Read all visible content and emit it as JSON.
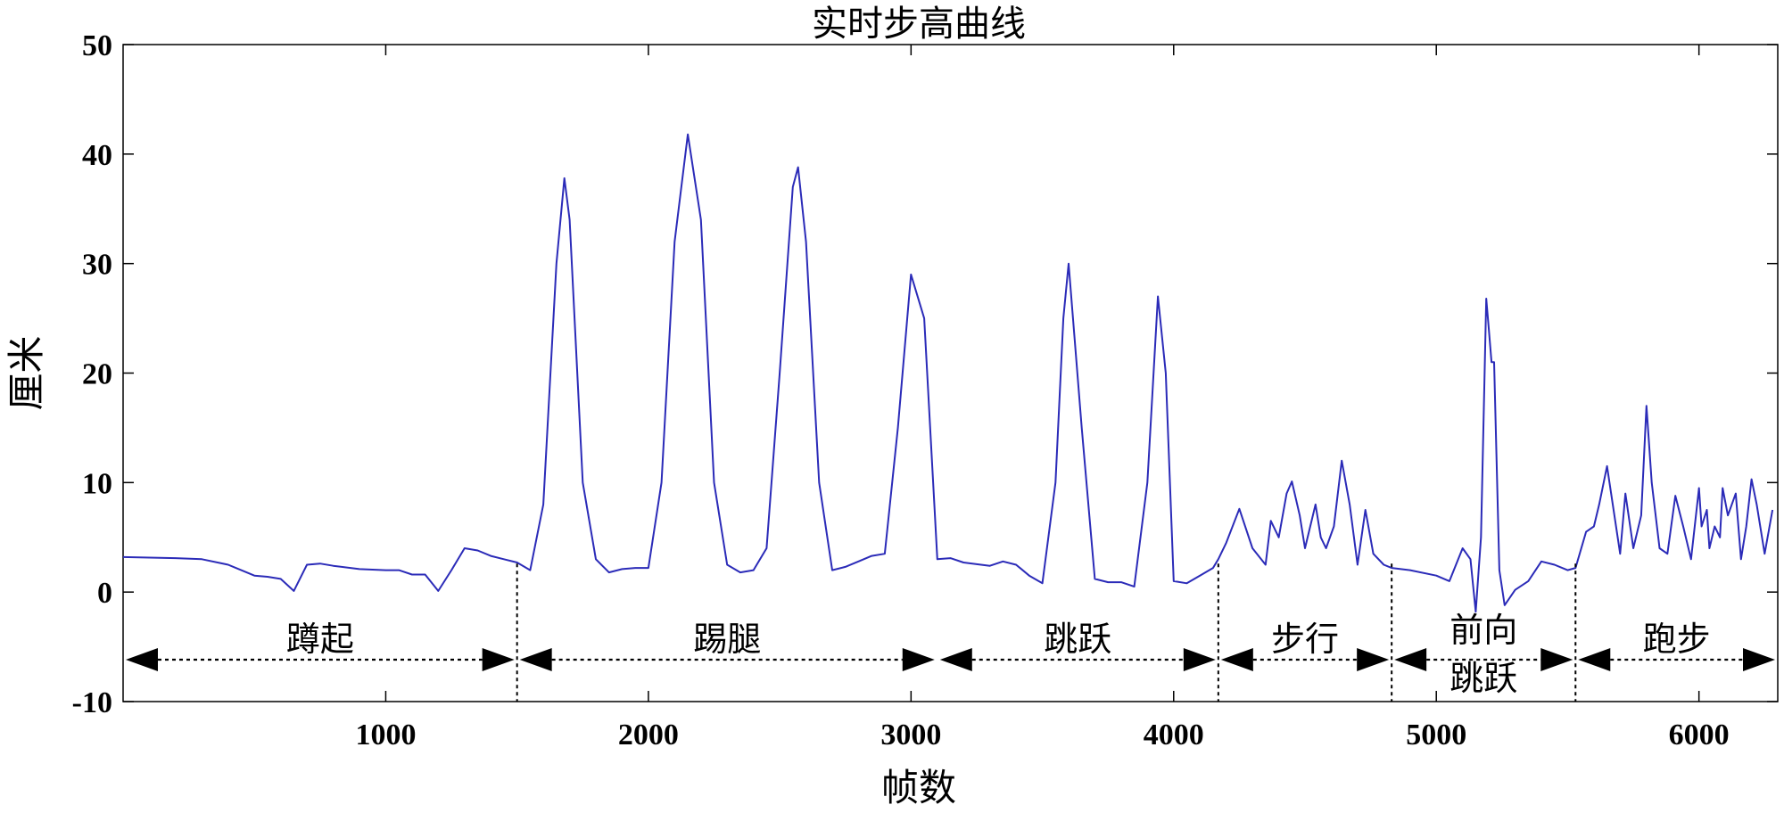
{
  "chart_data": {
    "type": "line",
    "title": "实时步高曲线",
    "xlabel": "帧数",
    "ylabel": "厘米",
    "xlim": [
      0,
      6300
    ],
    "ylim": [
      -10,
      50
    ],
    "xticks": [
      1000,
      2000,
      3000,
      4000,
      5000,
      6000
    ],
    "yticks": [
      -10,
      0,
      10,
      20,
      30,
      40,
      50
    ],
    "grid": false,
    "line_color": "#2b2bb8",
    "series": [
      {
        "x": [
          0,
          200,
          300,
          400,
          500,
          550,
          600,
          650,
          700,
          750,
          800,
          900,
          1000,
          1050,
          1100,
          1150,
          1200,
          1250,
          1300,
          1350,
          1400,
          1450,
          1500,
          1550,
          1600,
          1650,
          1680,
          1700,
          1750,
          1800,
          1850,
          1900,
          1950,
          2000,
          2050,
          2100,
          2150,
          2200,
          2250,
          2300,
          2350,
          2400,
          2450,
          2500,
          2550,
          2570,
          2600,
          2650,
          2700,
          2750,
          2800,
          2850,
          2900,
          2950,
          3000,
          3050,
          3100,
          3150,
          3200,
          3300,
          3350,
          3400,
          3450,
          3500,
          3550,
          3580,
          3600,
          3650,
          3700,
          3750,
          3800,
          3850,
          3900,
          3940,
          3970,
          4000,
          4050,
          4100,
          4150,
          4170,
          4200,
          4250,
          4300,
          4350,
          4370,
          4400,
          4430,
          4450,
          4480,
          4500,
          4540,
          4560,
          4580,
          4610,
          4640,
          4670,
          4700,
          4730,
          4760,
          4800,
          4830,
          4900,
          5000,
          5050,
          5100,
          5130,
          5150,
          5170,
          5190,
          5200,
          5210,
          5220,
          5240,
          5260,
          5280,
          5300,
          5350,
          5400,
          5450,
          5500,
          5530,
          5570,
          5600,
          5620,
          5650,
          5700,
          5720,
          5750,
          5780,
          5800,
          5820,
          5850,
          5880,
          5910,
          5940,
          5970,
          6000,
          6010,
          6030,
          6040,
          6060,
          6080,
          6090,
          6110,
          6140,
          6160,
          6180,
          6200,
          6220,
          6250,
          6280
        ],
        "y": [
          3.2,
          3.1,
          3.0,
          2.5,
          1.5,
          1.4,
          1.2,
          0.1,
          2.5,
          2.6,
          2.4,
          2.1,
          2.0,
          2.0,
          1.6,
          1.6,
          0.1,
          2.0,
          4.0,
          3.8,
          3.3,
          3.0,
          2.7,
          2.0,
          8.0,
          30.0,
          37.8,
          34.0,
          10.0,
          3.0,
          1.8,
          2.1,
          2.2,
          2.2,
          10.0,
          32.0,
          41.8,
          34.0,
          10.0,
          2.5,
          1.8,
          2.0,
          4.0,
          20.0,
          37.0,
          38.8,
          32.0,
          10.0,
          2.0,
          2.3,
          2.8,
          3.3,
          3.5,
          15.0,
          29.0,
          25.0,
          3.0,
          3.1,
          2.7,
          2.4,
          2.8,
          2.5,
          1.5,
          0.8,
          10.0,
          25.0,
          30.0,
          15.0,
          1.2,
          0.9,
          0.9,
          0.5,
          10.0,
          27.0,
          20.0,
          1.0,
          0.8,
          1.5,
          2.2,
          3.0,
          4.5,
          7.6,
          4.0,
          2.5,
          6.5,
          5.0,
          9.0,
          10.1,
          7.0,
          4.0,
          8.0,
          5.0,
          4.0,
          6.0,
          12.0,
          8.0,
          2.5,
          7.5,
          3.5,
          2.5,
          2.2,
          2.0,
          1.5,
          1.0,
          4.0,
          3.0,
          -1.8,
          5.0,
          26.8,
          24.0,
          21.0,
          21.0,
          2.0,
          -1.2,
          -0.5,
          0.2,
          1.0,
          2.8,
          2.5,
          2.0,
          2.2,
          5.5,
          6.0,
          8.0,
          11.5,
          3.5,
          9.0,
          4.0,
          7.0,
          17.0,
          10.0,
          4.0,
          3.5,
          8.8,
          6.0,
          3.0,
          9.5,
          6.0,
          7.5,
          4.0,
          6.0,
          5.0,
          9.5,
          7.0,
          9.0,
          3.0,
          6.0,
          10.3,
          8.0,
          3.5,
          7.5
        ]
      }
    ],
    "segments": [
      {
        "name": "蹲起",
        "start": 0,
        "end": 1500
      },
      {
        "name": "踢腿",
        "start": 1500,
        "end": 3100
      },
      {
        "name": "跳跃",
        "start": 3100,
        "end": 4170
      },
      {
        "name": "步行",
        "start": 4170,
        "end": 4830
      },
      {
        "name": "前向跳跃",
        "start": 4830,
        "end": 5530,
        "label_lines": [
          "前向",
          "跳跃"
        ]
      },
      {
        "name": "跑步",
        "start": 5530,
        "end": 6300
      }
    ],
    "segment_boundaries": [
      1500,
      4170,
      4830,
      5530
    ]
  }
}
